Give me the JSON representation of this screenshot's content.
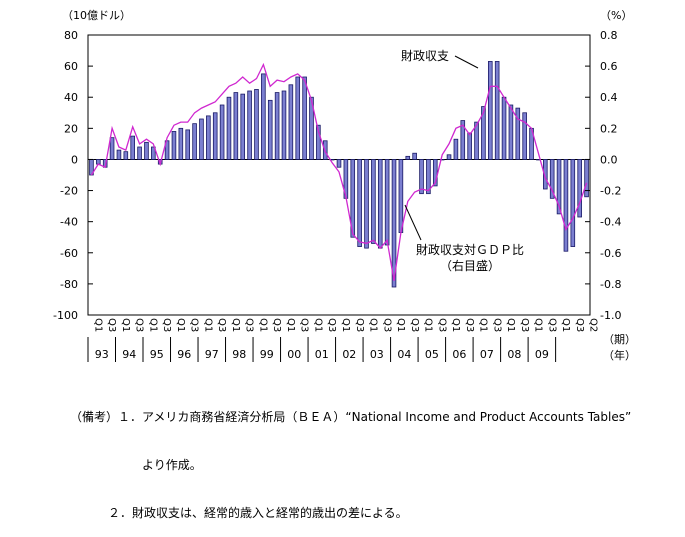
{
  "chart_data": {
    "type": "bar+line",
    "left_unit": "（10億ドル）",
    "right_unit": "（%）",
    "x_unit": "（期）",
    "x_unit2": "（年）",
    "ylim": [
      -100,
      80
    ],
    "y2lim": [
      -1.0,
      0.8
    ],
    "yticks": [
      "80",
      "60",
      "40",
      "20",
      "0",
      "-20",
      "-40",
      "-60",
      "-80",
      "-100"
    ],
    "y2ticks": [
      "0.8",
      "0.6",
      "0.4",
      "0.2",
      "0.0",
      "-0.2",
      "-0.4",
      "-0.6",
      "-0.8",
      "-1.0"
    ],
    "quarter_labels": [
      "Q1",
      "Q3"
    ],
    "year_labels": [
      "93",
      "94",
      "95",
      "96",
      "97",
      "98",
      "99",
      "00",
      "01",
      "02",
      "03",
      "04",
      "05",
      "06",
      "07",
      "08",
      "09"
    ],
    "last_quarter_label": "Q2",
    "series": [
      {
        "name": "財政収支",
        "axis": "left",
        "values": [
          -10,
          -3,
          -5,
          14,
          6,
          5,
          15,
          8,
          11,
          8,
          -3,
          12,
          18,
          20,
          19,
          23,
          26,
          28,
          30,
          35,
          40,
          43,
          42,
          44,
          45,
          55,
          38,
          43,
          44,
          48,
          53,
          53,
          40,
          22,
          12,
          0,
          -5,
          -25,
          -50,
          -56,
          -57,
          -54,
          -57,
          -55,
          -82,
          -47,
          2,
          4,
          -22,
          -22,
          -17,
          0,
          3,
          13,
          25,
          17,
          24,
          34,
          63,
          63,
          40,
          35,
          33,
          30,
          20,
          0,
          -19,
          -25,
          -35,
          -59,
          -56,
          -37,
          -24
        ]
      },
      {
        "name": "財政収支対ＧＤＰ比",
        "axis": "right",
        "values": [
          -0.1,
          -0.03,
          -0.05,
          0.2,
          0.08,
          0.06,
          0.21,
          0.1,
          0.13,
          0.1,
          -0.03,
          0.14,
          0.22,
          0.24,
          0.24,
          0.3,
          0.33,
          0.35,
          0.37,
          0.42,
          0.47,
          0.49,
          0.53,
          0.49,
          0.52,
          0.61,
          0.47,
          0.51,
          0.5,
          0.53,
          0.55,
          0.51,
          0.38,
          0.18,
          0.05,
          -0.02,
          -0.08,
          -0.24,
          -0.48,
          -0.53,
          -0.54,
          -0.52,
          -0.57,
          -0.52,
          -0.78,
          -0.47,
          -0.27,
          -0.21,
          -0.19,
          -0.2,
          -0.15,
          0.03,
          0.1,
          0.2,
          0.22,
          0.16,
          0.22,
          0.3,
          0.47,
          0.47,
          0.4,
          0.33,
          0.26,
          0.24,
          0.2,
          0.04,
          -0.12,
          -0.2,
          -0.3,
          -0.45,
          -0.38,
          -0.28,
          -0.15
        ]
      }
    ],
    "annotations": {
      "bar_label": "財政収支",
      "line_label_1": "財政収支対ＧＤＰ比",
      "line_label_2": "（右目盛）"
    }
  },
  "notes": {
    "line1": "（備考）１．アメリカ商務省経済分析局（ＢＥＡ）“National Income and Product Accounts Tables”",
    "line2": "より作成。",
    "line3": "２．財政収支は、経常的歳入と経常的歳出の差による。"
  }
}
